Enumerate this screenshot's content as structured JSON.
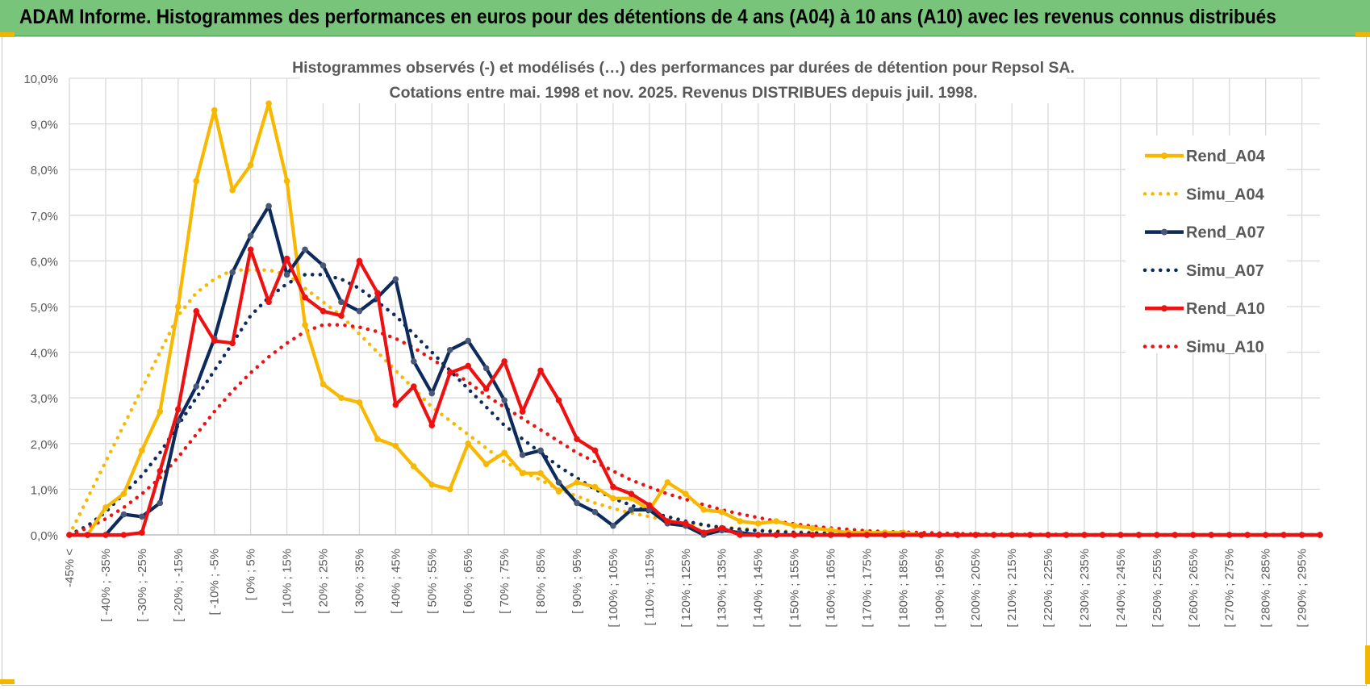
{
  "banner": {
    "title": "ADAM Informe. Histogrammes des performances en euros pour des détentions de 4 ans (A04) à 10 ans (A10) avec les revenus connus distribués"
  },
  "colors": {
    "banner_bg": "#77c47a",
    "A04": "#f9b800",
    "A07": "#0d2a5c",
    "A10": "#ee1111",
    "grid": "#d9d9d9",
    "axis_text": "#595959"
  },
  "chart_data": {
    "type": "line",
    "title": "Histogrammes observés (-) et modélisés (…) des performances par durées de détention pour Repsol SA.",
    "subtitle": "Cotations entre mai. 1998 et nov. 2025. Revenus DISTRIBUES depuis juil. 1998.",
    "ylim": [
      0,
      10
    ],
    "yticks": [
      "0,0%",
      "1,0%",
      "2,0%",
      "3,0%",
      "4,0%",
      "5,0%",
      "6,0%",
      "7,0%",
      "8,0%",
      "9,0%",
      "10,0%"
    ],
    "grid": true,
    "legend_position": "right",
    "x_tick_labels": [
      "-45% <",
      "[ -40% ; -35%",
      "[ -30% ; -25%",
      "[ -20% ; -15%",
      "[ -10% ; -5%",
      "[ 0% ; 5%",
      "[ 10% ; 15%",
      "[ 20% ; 25%",
      "[ 30% ; 35%",
      "[ 40% ; 45%",
      "[ 50% ; 55%",
      "[ 60% ; 65%",
      "[ 70% ; 75%",
      "[ 80% ; 85%",
      "[ 90% ; 95%",
      "[ 100% ; 105%",
      "[ 110% ; 115%",
      "[ 120% ; 125%",
      "[ 130% ; 135%",
      "[ 140% ; 145%",
      "[ 150% ; 155%",
      "[ 160% ; 165%",
      "[ 170% ; 175%",
      "[ 180% ; 185%",
      "[ 190% ; 195%",
      "[ 200% ; 205%",
      "[ 210% ; 215%",
      "[ 220% ; 225%",
      "[ 230% ; 235%",
      "[ 240% ; 245%",
      "[ 250% ; 255%",
      "[ 260% ; 265%",
      "[ 270% ; 275%",
      "[ 280% ; 285%",
      "[ 290% ; 295%"
    ],
    "x_positions": 70,
    "series": [
      {
        "name": "Rend_A04",
        "style": "solid",
        "color": "#f9b800",
        "values": [
          0,
          0,
          0.6,
          0.9,
          1.85,
          2.7,
          5.0,
          7.75,
          9.3,
          7.55,
          8.1,
          9.45,
          7.75,
          4.6,
          3.3,
          3.0,
          2.9,
          2.1,
          1.95,
          1.5,
          1.1,
          1.0,
          2.0,
          1.55,
          1.8,
          1.35,
          1.35,
          0.95,
          1.15,
          1.05,
          0.8,
          0.8,
          0.55,
          1.15,
          0.9,
          0.55,
          0.5,
          0.3,
          0.25,
          0.3,
          0.2,
          0.15,
          0.1,
          0.05,
          0.05,
          0.05,
          0.05,
          0,
          0,
          0,
          0,
          0,
          0,
          0,
          0,
          0,
          0,
          0,
          0,
          0,
          0,
          0,
          0,
          0,
          0,
          0,
          0,
          0,
          0,
          0
        ]
      },
      {
        "name": "Simu_A04",
        "style": "dotted",
        "color": "#f9b800",
        "values": [
          0,
          0.8,
          1.6,
          2.4,
          3.2,
          4.0,
          4.8,
          5.3,
          5.6,
          5.8,
          5.8,
          5.8,
          5.7,
          5.4,
          5.1,
          4.8,
          4.4,
          4.0,
          3.6,
          3.2,
          2.8,
          2.5,
          2.2,
          1.9,
          1.6,
          1.4,
          1.2,
          1.0,
          0.85,
          0.7,
          0.58,
          0.48,
          0.4,
          0.32,
          0.26,
          0.21,
          0.17,
          0.14,
          0.11,
          0.09,
          0.07,
          0.06,
          0.05,
          0.04,
          0.03,
          0.02,
          0.02,
          0.01,
          0.01,
          0.01,
          0,
          0,
          0,
          0,
          0,
          0,
          0,
          0,
          0,
          0,
          0,
          0,
          0,
          0,
          0,
          0,
          0,
          0,
          0,
          0
        ]
      },
      {
        "name": "Rend_A07",
        "style": "solid",
        "color": "#0d2a5c",
        "values": [
          0,
          0,
          0,
          0.45,
          0.4,
          0.7,
          2.5,
          3.25,
          4.3,
          5.75,
          6.55,
          7.2,
          5.7,
          6.25,
          5.9,
          5.1,
          4.9,
          5.2,
          5.6,
          3.8,
          3.1,
          4.05,
          4.25,
          3.65,
          2.95,
          1.75,
          1.85,
          1.15,
          0.7,
          0.5,
          0.2,
          0.55,
          0.55,
          0.25,
          0.2,
          0,
          0.1,
          0.05,
          0,
          0,
          0,
          0,
          0,
          0,
          0,
          0,
          0,
          0,
          0,
          0,
          0,
          0,
          0,
          0,
          0,
          0,
          0,
          0,
          0,
          0,
          0,
          0,
          0,
          0,
          0,
          0,
          0,
          0,
          0,
          0
        ]
      },
      {
        "name": "Simu_A07",
        "style": "dotted",
        "color": "#0d2a5c",
        "values": [
          0,
          0.2,
          0.5,
          0.9,
          1.3,
          1.8,
          2.4,
          3.0,
          3.6,
          4.2,
          4.8,
          5.2,
          5.5,
          5.7,
          5.7,
          5.6,
          5.4,
          5.1,
          4.8,
          4.4,
          4.0,
          3.6,
          3.2,
          2.8,
          2.4,
          2.1,
          1.8,
          1.5,
          1.25,
          1.0,
          0.8,
          0.65,
          0.5,
          0.4,
          0.3,
          0.22,
          0.16,
          0.12,
          0.09,
          0.07,
          0.05,
          0.04,
          0.03,
          0.02,
          0.01,
          0.01,
          0.01,
          0,
          0,
          0,
          0,
          0,
          0,
          0,
          0,
          0,
          0,
          0,
          0,
          0,
          0,
          0,
          0,
          0,
          0,
          0,
          0,
          0,
          0,
          0
        ]
      },
      {
        "name": "Rend_A10",
        "style": "solid",
        "color": "#ee1111",
        "values": [
          0,
          0,
          0,
          0,
          0.05,
          1.4,
          2.75,
          4.9,
          4.25,
          4.2,
          6.25,
          5.1,
          6.05,
          5.2,
          4.9,
          4.8,
          6.0,
          5.3,
          2.85,
          3.25,
          2.4,
          3.55,
          3.7,
          3.2,
          3.8,
          2.7,
          3.6,
          2.95,
          2.1,
          1.85,
          1.05,
          0.9,
          0.65,
          0.3,
          0.25,
          0.05,
          0.15,
          0,
          0,
          0,
          0,
          0,
          0,
          0,
          0,
          0,
          0,
          0,
          0,
          0,
          0,
          0,
          0,
          0,
          0,
          0,
          0,
          0,
          0,
          0,
          0,
          0,
          0,
          0,
          0,
          0,
          0,
          0,
          0,
          0
        ]
      },
      {
        "name": "Simu_A10",
        "style": "dotted",
        "color": "#ee1111",
        "values": [
          0,
          0.15,
          0.35,
          0.6,
          0.9,
          1.25,
          1.7,
          2.2,
          2.7,
          3.15,
          3.55,
          3.9,
          4.2,
          4.45,
          4.6,
          4.6,
          4.55,
          4.45,
          4.3,
          4.1,
          3.85,
          3.6,
          3.35,
          3.05,
          2.8,
          2.55,
          2.3,
          2.05,
          1.8,
          1.6,
          1.4,
          1.2,
          1.05,
          0.9,
          0.78,
          0.66,
          0.55,
          0.46,
          0.38,
          0.3,
          0.24,
          0.19,
          0.15,
          0.12,
          0.09,
          0.07,
          0.06,
          0.05,
          0.04,
          0.03,
          0.02,
          0.02,
          0.01,
          0.01,
          0.01,
          0.01,
          0,
          0,
          0,
          0,
          0,
          0,
          0,
          0,
          0,
          0,
          0,
          0,
          0,
          0
        ]
      }
    ]
  }
}
